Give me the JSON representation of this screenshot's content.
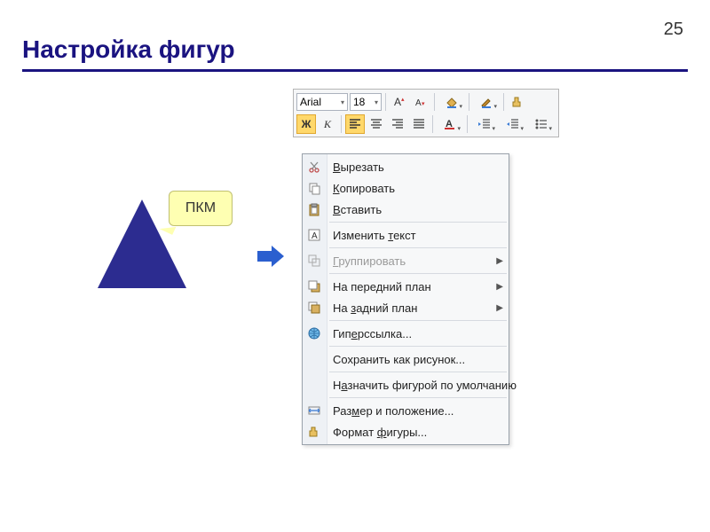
{
  "page_number": "25",
  "title": "Настройка фигур",
  "colors": {
    "brand": "#1a1380",
    "shape_fill": "#2c2c90",
    "arrow_fill": "#2b5fcf",
    "callout_bg": "#feffb2",
    "callout_border": "#c0c070",
    "toolbar_bg": "#f5f6f7",
    "menu_bg": "#f7f8f9",
    "menu_icon_strip": "#eef1f5"
  },
  "toolbar": {
    "font_name": "Arial",
    "font_size": "18",
    "bold_label": "Ж",
    "italic_label": "К"
  },
  "callout": {
    "label": "ПКМ"
  },
  "context_menu": {
    "items": [
      {
        "label": "Вырезать",
        "underline_index": 0,
        "icon": "cut"
      },
      {
        "label": "Копировать",
        "underline_index": 0,
        "icon": "copy"
      },
      {
        "label": "Вставить",
        "underline_index": 0,
        "icon": "paste"
      },
      {
        "sep": true
      },
      {
        "label": "Изменить текст",
        "underline_index": 9,
        "icon": "edit-text"
      },
      {
        "sep": true
      },
      {
        "label": "Группировать",
        "underline_index": 0,
        "icon": "group",
        "submenu": true,
        "disabled": true
      },
      {
        "sep": true
      },
      {
        "label": "На передний план",
        "underline_index": 7,
        "icon": "bring-front",
        "submenu": true
      },
      {
        "label": "На задний план",
        "underline_index": 3,
        "icon": "send-back",
        "submenu": true
      },
      {
        "sep": true
      },
      {
        "label": "Гиперссылка...",
        "underline_index": 3,
        "icon": "hyperlink"
      },
      {
        "sep": true
      },
      {
        "label": "Сохранить как рисунок...",
        "icon": null
      },
      {
        "sep": true
      },
      {
        "label": "Назначить фигурой по умолчанию",
        "underline_index": 1,
        "icon": null
      },
      {
        "sep": true
      },
      {
        "label": "Размер и положение...",
        "underline_index": 3,
        "icon": "size-pos"
      },
      {
        "label": "Формат фигуры...",
        "underline_index": 7,
        "icon": "format"
      }
    ]
  }
}
